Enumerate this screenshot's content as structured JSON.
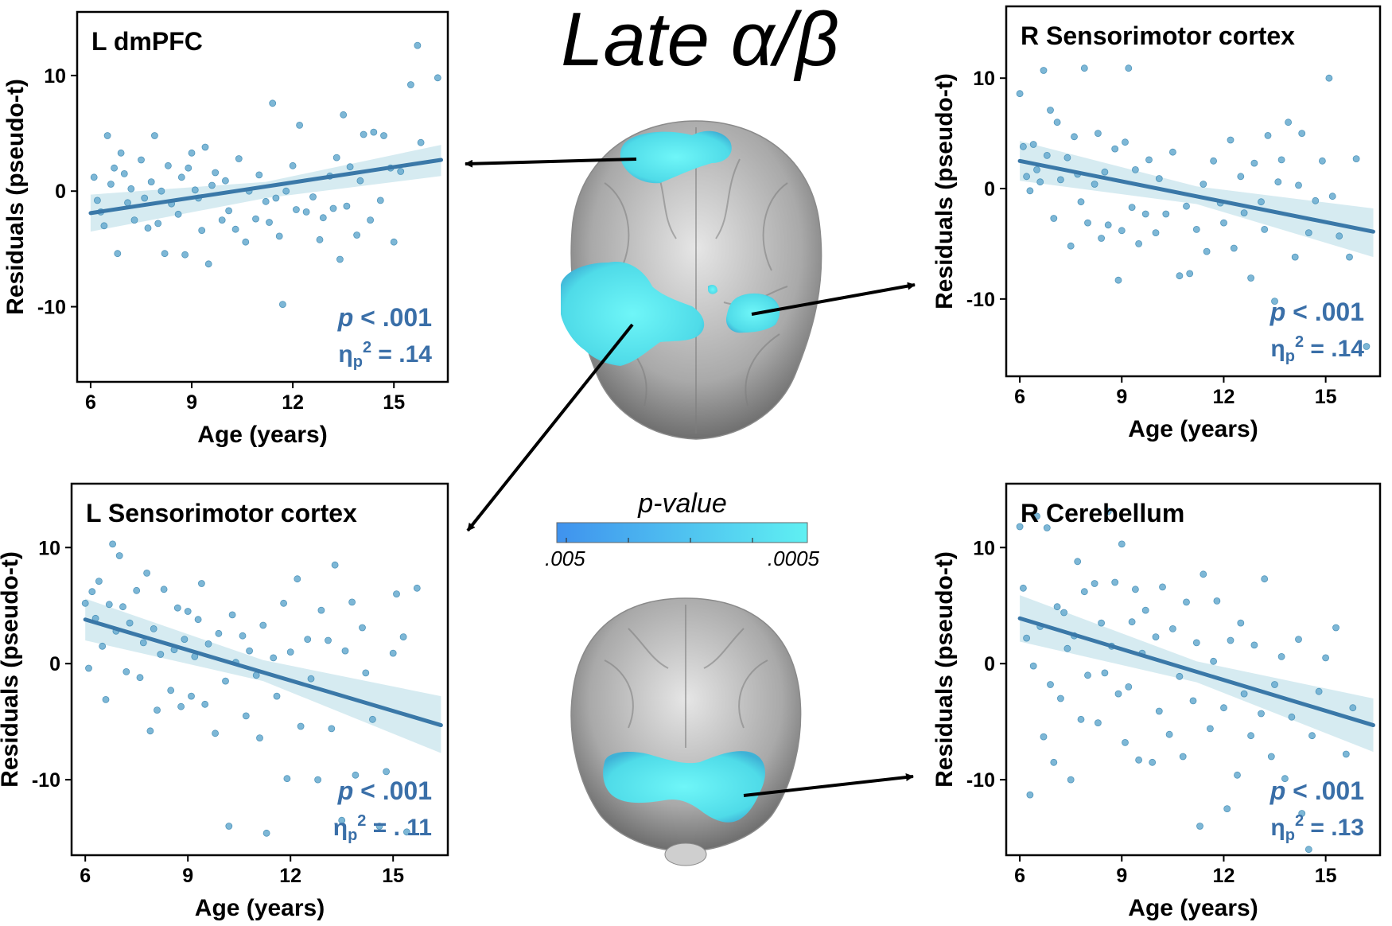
{
  "figure": {
    "title": "Late α/β",
    "colorbar": {
      "label": "p-value",
      "min_label": ".005",
      "max_label": ".0005",
      "color_low": "#3f92ee",
      "color_high": "#5ff0f2"
    },
    "colors": {
      "point": "#6fb0d2",
      "point_edge": "#3f8bb5",
      "line": "#3a78a8",
      "ci": "#cfe7ee",
      "stat_text": "#3a6fa8",
      "blob": "#56e6f0"
    }
  },
  "chart_data": [
    {
      "type": "scatter",
      "id": "l-dmpfc",
      "title": "L dmPFC",
      "xlabel": "Age (years)",
      "ylabel": "Residuals (pseudo-t)",
      "xlim": [
        5.6,
        16.6
      ],
      "ylim": [
        -16.5,
        15.5
      ],
      "xticks": [
        6,
        9,
        12,
        15
      ],
      "yticks": [
        10,
        0,
        -10
      ],
      "ytick_labels": [
        "10",
        "0",
        "-10"
      ],
      "stat_p": "p < .001",
      "stat_eta": ".14",
      "fit": {
        "x": [
          6.0,
          16.4
        ],
        "y": [
          -1.9,
          2.7
        ]
      },
      "ci": {
        "x": [
          6.0,
          11.2,
          16.4
        ],
        "upper": [
          -0.3,
          0.8,
          4.0
        ],
        "lower": [
          -3.5,
          -0.6,
          1.3
        ]
      },
      "points": [
        [
          6.1,
          1.2
        ],
        [
          6.2,
          -0.8
        ],
        [
          6.3,
          -1.8
        ],
        [
          6.4,
          -3.0
        ],
        [
          6.5,
          4.8
        ],
        [
          6.6,
          0.6
        ],
        [
          6.7,
          2.0
        ],
        [
          6.8,
          -5.4
        ],
        [
          6.9,
          3.3
        ],
        [
          7.0,
          1.5
        ],
        [
          7.1,
          -1.0
        ],
        [
          7.2,
          0.2
        ],
        [
          7.3,
          -2.5
        ],
        [
          7.5,
          2.7
        ],
        [
          7.6,
          -0.6
        ],
        [
          7.7,
          -3.2
        ],
        [
          7.8,
          0.8
        ],
        [
          7.9,
          4.8
        ],
        [
          8.0,
          -2.8
        ],
        [
          8.1,
          0.0
        ],
        [
          8.2,
          -5.4
        ],
        [
          8.3,
          2.2
        ],
        [
          8.4,
          -1.1
        ],
        [
          8.6,
          -2.0
        ],
        [
          8.7,
          1.2
        ],
        [
          8.8,
          -5.5
        ],
        [
          8.9,
          2.0
        ],
        [
          9.0,
          3.3
        ],
        [
          9.1,
          0.1
        ],
        [
          9.2,
          -0.6
        ],
        [
          9.3,
          -3.4
        ],
        [
          9.4,
          3.8
        ],
        [
          9.5,
          -6.3
        ],
        [
          9.6,
          0.5
        ],
        [
          9.7,
          1.6
        ],
        [
          9.9,
          -2.5
        ],
        [
          10.0,
          0.9
        ],
        [
          10.1,
          -1.7
        ],
        [
          10.3,
          -3.3
        ],
        [
          10.4,
          2.8
        ],
        [
          10.6,
          -4.4
        ],
        [
          10.7,
          0.0
        ],
        [
          10.9,
          -2.4
        ],
        [
          11.0,
          1.4
        ],
        [
          11.2,
          -0.9
        ],
        [
          11.3,
          -2.7
        ],
        [
          11.4,
          7.6
        ],
        [
          11.5,
          -0.6
        ],
        [
          11.6,
          -3.9
        ],
        [
          11.7,
          -9.8
        ],
        [
          11.8,
          0.0
        ],
        [
          12.0,
          2.2
        ],
        [
          12.1,
          -1.6
        ],
        [
          12.2,
          5.7
        ],
        [
          12.4,
          -1.8
        ],
        [
          12.6,
          -0.5
        ],
        [
          12.8,
          -4.2
        ],
        [
          12.9,
          -2.3
        ],
        [
          13.1,
          1.3
        ],
        [
          13.2,
          -1.5
        ],
        [
          13.3,
          2.9
        ],
        [
          13.4,
          -5.9
        ],
        [
          13.5,
          6.6
        ],
        [
          13.6,
          -1.3
        ],
        [
          13.7,
          2.1
        ],
        [
          13.9,
          -3.8
        ],
        [
          14.0,
          0.9
        ],
        [
          14.1,
          4.9
        ],
        [
          14.3,
          -2.5
        ],
        [
          14.4,
          5.1
        ],
        [
          14.6,
          -0.8
        ],
        [
          14.7,
          4.8
        ],
        [
          14.9,
          2.0
        ],
        [
          15.0,
          -4.4
        ],
        [
          15.2,
          1.7
        ],
        [
          15.5,
          9.2
        ],
        [
          15.7,
          12.6
        ],
        [
          15.8,
          4.2
        ],
        [
          16.3,
          9.8
        ]
      ]
    },
    {
      "type": "scatter",
      "id": "r-sensorimotor",
      "title": "R Sensorimotor cortex",
      "xlabel": "Age (years)",
      "ylabel": "Residuals (pseudo-t)",
      "xlim": [
        5.6,
        16.6
      ],
      "ylim": [
        -17,
        16.5
      ],
      "xticks": [
        6,
        9,
        12,
        15
      ],
      "yticks": [
        10,
        0,
        -10
      ],
      "ytick_labels": [
        "10",
        "0",
        "-10"
      ],
      "stat_p": "p < .001",
      "stat_eta": ".14",
      "fit": {
        "x": [
          6.0,
          16.4
        ],
        "y": [
          2.5,
          -3.9
        ]
      },
      "ci": {
        "x": [
          6.0,
          11.2,
          16.4
        ],
        "upper": [
          4.3,
          0.2,
          -1.8
        ],
        "lower": [
          0.7,
          -1.4,
          -6.2
        ]
      },
      "points": [
        [
          6.0,
          8.6
        ],
        [
          6.1,
          3.8
        ],
        [
          6.2,
          1.1
        ],
        [
          6.3,
          -0.2
        ],
        [
          6.4,
          4.0
        ],
        [
          6.5,
          1.7
        ],
        [
          6.6,
          0.6
        ],
        [
          6.7,
          10.7
        ],
        [
          6.8,
          3.0
        ],
        [
          6.9,
          7.1
        ],
        [
          7.0,
          -2.7
        ],
        [
          7.1,
          6.0
        ],
        [
          7.2,
          0.8
        ],
        [
          7.4,
          2.8
        ],
        [
          7.5,
          -5.2
        ],
        [
          7.6,
          4.7
        ],
        [
          7.7,
          1.3
        ],
        [
          7.8,
          -1.2
        ],
        [
          7.9,
          10.9
        ],
        [
          8.0,
          -3.1
        ],
        [
          8.2,
          0.4
        ],
        [
          8.3,
          5.0
        ],
        [
          8.4,
          -4.5
        ],
        [
          8.5,
          1.5
        ],
        [
          8.6,
          -3.3
        ],
        [
          8.8,
          3.6
        ],
        [
          8.9,
          -8.3
        ],
        [
          9.0,
          -3.8
        ],
        [
          9.1,
          4.2
        ],
        [
          9.2,
          10.9
        ],
        [
          9.3,
          -1.7
        ],
        [
          9.4,
          1.7
        ],
        [
          9.5,
          -5.0
        ],
        [
          9.7,
          -2.3
        ],
        [
          9.8,
          2.6
        ],
        [
          10.0,
          -4.0
        ],
        [
          10.1,
          0.9
        ],
        [
          10.3,
          -2.3
        ],
        [
          10.5,
          3.3
        ],
        [
          10.7,
          -7.9
        ],
        [
          10.9,
          -1.6
        ],
        [
          11.0,
          -7.7
        ],
        [
          11.2,
          -3.7
        ],
        [
          11.4,
          0.4
        ],
        [
          11.5,
          -5.7
        ],
        [
          11.7,
          2.5
        ],
        [
          11.9,
          -1.3
        ],
        [
          12.0,
          -3.1
        ],
        [
          12.2,
          4.4
        ],
        [
          12.3,
          -5.4
        ],
        [
          12.5,
          1.1
        ],
        [
          12.6,
          -2.2
        ],
        [
          12.8,
          -8.1
        ],
        [
          12.9,
          2.3
        ],
        [
          13.1,
          -1.2
        ],
        [
          13.2,
          -3.7
        ],
        [
          13.3,
          4.8
        ],
        [
          13.5,
          -10.2
        ],
        [
          13.6,
          0.6
        ],
        [
          13.7,
          2.6
        ],
        [
          13.9,
          6.0
        ],
        [
          14.1,
          -6.2
        ],
        [
          14.2,
          0.3
        ],
        [
          14.3,
          5.0
        ],
        [
          14.5,
          -4.0
        ],
        [
          14.7,
          -1.1
        ],
        [
          14.9,
          2.5
        ],
        [
          15.1,
          10.0
        ],
        [
          15.2,
          -0.7
        ],
        [
          15.4,
          -4.3
        ],
        [
          15.7,
          -6.2
        ],
        [
          15.9,
          2.7
        ],
        [
          16.2,
          -14.3
        ]
      ]
    },
    {
      "type": "scatter",
      "id": "l-sensorimotor",
      "title": "L Sensorimotor cortex",
      "xlabel": "Age (years)",
      "ylabel": "Residuals (pseudo-t)",
      "xlim": [
        5.6,
        16.6
      ],
      "ylim": [
        -16.5,
        15.5
      ],
      "xticks": [
        6,
        9,
        12,
        15
      ],
      "yticks": [
        10,
        0,
        -10
      ],
      "ytick_labels": [
        "10",
        "0",
        "-10"
      ],
      "stat_p": "p < .001",
      "stat_eta": ". 11",
      "fit": {
        "x": [
          6.0,
          16.4
        ],
        "y": [
          3.8,
          -5.3
        ]
      },
      "ci": {
        "x": [
          6.0,
          11.2,
          16.4
        ],
        "upper": [
          5.6,
          0.3,
          -2.8
        ],
        "lower": [
          2.0,
          -1.5,
          -7.7
        ]
      },
      "points": [
        [
          6.0,
          5.2
        ],
        [
          6.1,
          -0.4
        ],
        [
          6.2,
          6.2
        ],
        [
          6.3,
          3.9
        ],
        [
          6.4,
          7.1
        ],
        [
          6.5,
          1.5
        ],
        [
          6.6,
          -3.1
        ],
        [
          6.7,
          5.1
        ],
        [
          6.8,
          10.3
        ],
        [
          6.9,
          2.8
        ],
        [
          7.0,
          9.3
        ],
        [
          7.1,
          4.9
        ],
        [
          7.2,
          -0.7
        ],
        [
          7.3,
          3.5
        ],
        [
          7.5,
          6.3
        ],
        [
          7.6,
          -1.2
        ],
        [
          7.7,
          1.8
        ],
        [
          7.8,
          7.8
        ],
        [
          7.9,
          -5.8
        ],
        [
          8.0,
          3.0
        ],
        [
          8.1,
          -4.0
        ],
        [
          8.2,
          0.8
        ],
        [
          8.3,
          6.4
        ],
        [
          8.5,
          -2.3
        ],
        [
          8.6,
          1.2
        ],
        [
          8.7,
          4.8
        ],
        [
          8.8,
          -3.7
        ],
        [
          8.9,
          2.1
        ],
        [
          9.0,
          4.5
        ],
        [
          9.1,
          -2.8
        ],
        [
          9.2,
          0.6
        ],
        [
          9.3,
          3.8
        ],
        [
          9.4,
          6.9
        ],
        [
          9.5,
          -3.5
        ],
        [
          9.6,
          1.7
        ],
        [
          9.8,
          -6.0
        ],
        [
          9.9,
          2.6
        ],
        [
          10.1,
          -1.5
        ],
        [
          10.2,
          -14.0
        ],
        [
          10.3,
          4.2
        ],
        [
          10.4,
          0.1
        ],
        [
          10.6,
          2.4
        ],
        [
          10.7,
          -4.5
        ],
        [
          10.8,
          1.1
        ],
        [
          11.0,
          -1.0
        ],
        [
          11.1,
          -6.4
        ],
        [
          11.2,
          3.3
        ],
        [
          11.3,
          -14.6
        ],
        [
          11.5,
          0.5
        ],
        [
          11.6,
          -2.8
        ],
        [
          11.8,
          5.2
        ],
        [
          11.9,
          -9.9
        ],
        [
          12.0,
          1.0
        ],
        [
          12.2,
          7.3
        ],
        [
          12.3,
          -5.4
        ],
        [
          12.5,
          2.1
        ],
        [
          12.6,
          -1.3
        ],
        [
          12.8,
          -10.0
        ],
        [
          12.9,
          4.6
        ],
        [
          13.1,
          2.0
        ],
        [
          13.2,
          -5.6
        ],
        [
          13.3,
          8.5
        ],
        [
          13.5,
          -13.5
        ],
        [
          13.6,
          1.1
        ],
        [
          13.8,
          5.3
        ],
        [
          13.9,
          -9.6
        ],
        [
          14.1,
          3.1
        ],
        [
          14.2,
          -0.8
        ],
        [
          14.4,
          -4.8
        ],
        [
          14.6,
          -14.0
        ],
        [
          14.8,
          -9.3
        ],
        [
          15.0,
          0.9
        ],
        [
          15.1,
          6.0
        ],
        [
          15.3,
          2.3
        ],
        [
          15.4,
          -14.5
        ],
        [
          15.7,
          6.5
        ]
      ]
    },
    {
      "type": "scatter",
      "id": "r-cerebellum",
      "title": "R Cerebellum",
      "xlabel": "Age (years)",
      "ylabel": "Residuals (pseudo-t)",
      "xlim": [
        5.6,
        16.6
      ],
      "ylim": [
        -16.5,
        15.5
      ],
      "xticks": [
        6,
        9,
        12,
        15
      ],
      "yticks": [
        10,
        0,
        -10
      ],
      "ytick_labels": [
        "10",
        "0",
        "-10"
      ],
      "stat_p": "p < .001",
      "stat_eta": ".13",
      "fit": {
        "x": [
          6.0,
          16.4
        ],
        "y": [
          3.9,
          -5.3
        ]
      },
      "ci": {
        "x": [
          6.0,
          11.2,
          16.4
        ],
        "upper": [
          5.9,
          0.2,
          -3.0
        ],
        "lower": [
          1.9,
          -1.6,
          -7.6
        ]
      },
      "points": [
        [
          6.0,
          11.8
        ],
        [
          6.1,
          6.5
        ],
        [
          6.2,
          2.2
        ],
        [
          6.3,
          -11.3
        ],
        [
          6.4,
          -0.2
        ],
        [
          6.5,
          12.7
        ],
        [
          6.6,
          3.2
        ],
        [
          6.7,
          -6.3
        ],
        [
          6.8,
          11.7
        ],
        [
          6.9,
          -1.8
        ],
        [
          7.0,
          -8.5
        ],
        [
          7.1,
          4.9
        ],
        [
          7.2,
          -3.0
        ],
        [
          7.3,
          4.4
        ],
        [
          7.4,
          1.3
        ],
        [
          7.5,
          -10.0
        ],
        [
          7.6,
          2.4
        ],
        [
          7.7,
          8.8
        ],
        [
          7.8,
          -4.8
        ],
        [
          7.9,
          6.2
        ],
        [
          8.0,
          -1.0
        ],
        [
          8.2,
          6.9
        ],
        [
          8.3,
          -5.1
        ],
        [
          8.4,
          3.5
        ],
        [
          8.5,
          -0.8
        ],
        [
          8.6,
          13.1
        ],
        [
          8.7,
          1.5
        ],
        [
          8.8,
          7.0
        ],
        [
          8.9,
          -2.6
        ],
        [
          9.0,
          10.3
        ],
        [
          9.1,
          -6.8
        ],
        [
          9.2,
          -2.0
        ],
        [
          9.3,
          3.6
        ],
        [
          9.4,
          6.4
        ],
        [
          9.5,
          -8.3
        ],
        [
          9.6,
          0.9
        ],
        [
          9.7,
          4.6
        ],
        [
          9.9,
          -8.5
        ],
        [
          10.0,
          2.3
        ],
        [
          10.1,
          -4.1
        ],
        [
          10.2,
          6.6
        ],
        [
          10.4,
          -6.1
        ],
        [
          10.5,
          3.0
        ],
        [
          10.7,
          -1.1
        ],
        [
          10.8,
          -8.0
        ],
        [
          10.9,
          5.3
        ],
        [
          11.1,
          -3.2
        ],
        [
          11.2,
          1.8
        ],
        [
          11.3,
          -14.0
        ],
        [
          11.4,
          7.7
        ],
        [
          11.6,
          -5.6
        ],
        [
          11.7,
          0.2
        ],
        [
          11.8,
          5.4
        ],
        [
          12.0,
          -3.8
        ],
        [
          12.1,
          -12.5
        ],
        [
          12.2,
          2.0
        ],
        [
          12.4,
          -9.6
        ],
        [
          12.5,
          3.5
        ],
        [
          12.6,
          -2.6
        ],
        [
          12.8,
          -6.2
        ],
        [
          12.9,
          1.6
        ],
        [
          13.1,
          -4.3
        ],
        [
          13.2,
          7.3
        ],
        [
          13.4,
          -8.0
        ],
        [
          13.5,
          -1.8
        ],
        [
          13.7,
          0.6
        ],
        [
          13.8,
          -9.9
        ],
        [
          14.0,
          -4.6
        ],
        [
          14.2,
          2.1
        ],
        [
          14.3,
          -12.9
        ],
        [
          14.5,
          -16.0
        ],
        [
          14.6,
          -6.2
        ],
        [
          14.8,
          -2.4
        ],
        [
          15.0,
          0.5
        ],
        [
          15.3,
          3.1
        ],
        [
          15.6,
          -7.8
        ],
        [
          15.8,
          -3.8
        ]
      ]
    }
  ]
}
